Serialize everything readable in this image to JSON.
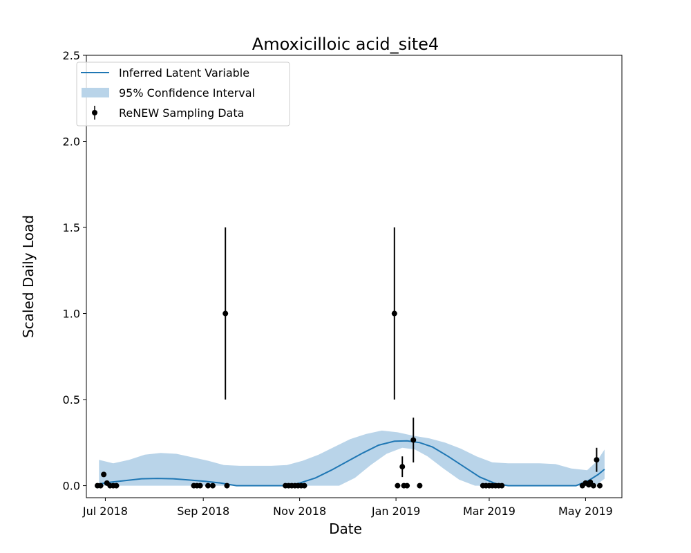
{
  "chart_data": {
    "type": "line",
    "title": "Amoxicilloic acid_site4",
    "xlabel": "Date",
    "ylabel": "Scaled Daily Load",
    "xlim": [
      "2018-06-19",
      "2019-05-24"
    ],
    "ylim": [
      -0.07,
      2.5
    ],
    "x_ticks": [
      {
        "date": "2018-07-01",
        "label": "Jul 2018"
      },
      {
        "date": "2018-09-01",
        "label": "Sep 2018"
      },
      {
        "date": "2018-11-01",
        "label": "Nov 2018"
      },
      {
        "date": "2019-01-01",
        "label": "Jan 2019"
      },
      {
        "date": "2019-03-01",
        "label": "Mar 2019"
      },
      {
        "date": "2019-05-01",
        "label": "May 2019"
      }
    ],
    "y_ticks": [
      {
        "value": 0.0,
        "label": "0.0"
      },
      {
        "value": 0.5,
        "label": "0.5"
      },
      {
        "value": 1.0,
        "label": "1.0"
      },
      {
        "value": 1.5,
        "label": "1.5"
      },
      {
        "value": 2.0,
        "label": "2.0"
      },
      {
        "value": 2.5,
        "label": "2.5"
      }
    ],
    "legend": {
      "placement": "top-left",
      "entries": [
        "Inferred Latent Variable",
        "95% Confidence Interval",
        "ReNEW Sampling Data"
      ]
    },
    "colors": {
      "line": "#1f77b4",
      "band": "#b9d4e9",
      "points": "#000000"
    },
    "latent": {
      "name": "Inferred Latent Variable",
      "points": [
        [
          "2018-06-27",
          0.01
        ],
        [
          "2018-07-04",
          0.02
        ],
        [
          "2018-07-14",
          0.03
        ],
        [
          "2018-07-24",
          0.04
        ],
        [
          "2018-08-03",
          0.042
        ],
        [
          "2018-08-13",
          0.04
        ],
        [
          "2018-08-23",
          0.033
        ],
        [
          "2018-09-02",
          0.025
        ],
        [
          "2018-09-12",
          0.015
        ],
        [
          "2018-09-22",
          0.0
        ],
        [
          "2018-10-12",
          0.0
        ],
        [
          "2018-10-25",
          0.0
        ],
        [
          "2018-11-01",
          0.015
        ],
        [
          "2018-11-11",
          0.045
        ],
        [
          "2018-11-21",
          0.09
        ],
        [
          "2018-12-01",
          0.14
        ],
        [
          "2018-12-11",
          0.19
        ],
        [
          "2018-12-21",
          0.235
        ],
        [
          "2018-12-31",
          0.258
        ],
        [
          "2019-01-08",
          0.26
        ],
        [
          "2019-01-16",
          0.25
        ],
        [
          "2019-01-24",
          0.225
        ],
        [
          "2019-02-03",
          0.17
        ],
        [
          "2019-02-13",
          0.11
        ],
        [
          "2019-02-23",
          0.05
        ],
        [
          "2019-03-05",
          0.012
        ],
        [
          "2019-03-13",
          0.0
        ],
        [
          "2019-04-25",
          0.0
        ],
        [
          "2019-05-03",
          0.03
        ],
        [
          "2019-05-09",
          0.065
        ],
        [
          "2019-05-13",
          0.095
        ]
      ]
    },
    "confidence_interval": {
      "name": "95% Confidence Interval",
      "upper": [
        [
          "2018-06-27",
          0.15
        ],
        [
          "2018-07-06",
          0.13
        ],
        [
          "2018-07-16",
          0.15
        ],
        [
          "2018-07-26",
          0.18
        ],
        [
          "2018-08-05",
          0.19
        ],
        [
          "2018-08-15",
          0.185
        ],
        [
          "2018-08-25",
          0.165
        ],
        [
          "2018-09-04",
          0.145
        ],
        [
          "2018-09-14",
          0.12
        ],
        [
          "2018-09-24",
          0.115
        ],
        [
          "2018-10-14",
          0.115
        ],
        [
          "2018-10-24",
          0.12
        ],
        [
          "2018-11-03",
          0.145
        ],
        [
          "2018-11-13",
          0.18
        ],
        [
          "2018-11-23",
          0.225
        ],
        [
          "2018-12-03",
          0.27
        ],
        [
          "2018-12-13",
          0.3
        ],
        [
          "2018-12-23",
          0.32
        ],
        [
          "2019-01-02",
          0.31
        ],
        [
          "2019-01-12",
          0.29
        ],
        [
          "2019-01-22",
          0.275
        ],
        [
          "2019-02-01",
          0.25
        ],
        [
          "2019-02-11",
          0.215
        ],
        [
          "2019-02-21",
          0.17
        ],
        [
          "2019-03-03",
          0.135
        ],
        [
          "2019-03-13",
          0.13
        ],
        [
          "2019-03-23",
          0.13
        ],
        [
          "2019-04-02",
          0.13
        ],
        [
          "2019-04-12",
          0.125
        ],
        [
          "2019-04-22",
          0.1
        ],
        [
          "2019-05-02",
          0.09
        ],
        [
          "2019-05-08",
          0.14
        ],
        [
          "2019-05-13",
          0.21
        ]
      ],
      "lower": [
        [
          "2018-06-27",
          0.0
        ],
        [
          "2018-11-26",
          0.0
        ],
        [
          "2018-12-06",
          0.045
        ],
        [
          "2018-12-16",
          0.12
        ],
        [
          "2018-12-26",
          0.185
        ],
        [
          "2019-01-05",
          0.22
        ],
        [
          "2019-01-13",
          0.21
        ],
        [
          "2019-01-21",
          0.17
        ],
        [
          "2019-01-31",
          0.1
        ],
        [
          "2019-02-10",
          0.035
        ],
        [
          "2019-02-20",
          0.0
        ],
        [
          "2019-05-07",
          0.0
        ],
        [
          "2019-05-10",
          0.02
        ],
        [
          "2019-05-13",
          0.04
        ]
      ]
    },
    "samples": [
      {
        "x": "2018-06-26",
        "y": 0.0
      },
      {
        "x": "2018-06-28",
        "y": 0.0
      },
      {
        "x": "2018-06-30",
        "y": 0.065
      },
      {
        "x": "2018-07-02",
        "y": 0.015
      },
      {
        "x": "2018-07-04",
        "y": 0.0
      },
      {
        "x": "2018-07-06",
        "y": 0.0
      },
      {
        "x": "2018-07-08",
        "y": 0.0
      },
      {
        "x": "2018-08-26",
        "y": 0.0
      },
      {
        "x": "2018-08-28",
        "y": 0.0
      },
      {
        "x": "2018-08-30",
        "y": 0.0
      },
      {
        "x": "2018-09-04",
        "y": 0.0
      },
      {
        "x": "2018-09-07",
        "y": 0.0
      },
      {
        "x": "2018-09-15",
        "y": 1.0,
        "err": 0.5
      },
      {
        "x": "2018-09-16",
        "y": 0.0
      },
      {
        "x": "2018-10-23",
        "y": 0.0
      },
      {
        "x": "2018-10-25",
        "y": 0.0
      },
      {
        "x": "2018-10-27",
        "y": 0.0
      },
      {
        "x": "2018-10-29",
        "y": 0.0
      },
      {
        "x": "2018-10-31",
        "y": 0.0
      },
      {
        "x": "2018-11-02",
        "y": 0.0
      },
      {
        "x": "2018-11-04",
        "y": 0.0
      },
      {
        "x": "2018-12-31",
        "y": 1.0,
        "err": 0.5
      },
      {
        "x": "2019-01-02",
        "y": 0.0
      },
      {
        "x": "2019-01-05",
        "y": 0.11,
        "err": 0.06
      },
      {
        "x": "2019-01-06",
        "y": 0.0
      },
      {
        "x": "2019-01-08",
        "y": 0.0
      },
      {
        "x": "2019-01-12",
        "y": 0.265,
        "err": 0.13
      },
      {
        "x": "2019-01-16",
        "y": 0.0
      },
      {
        "x": "2019-02-25",
        "y": 0.0
      },
      {
        "x": "2019-02-27",
        "y": 0.0
      },
      {
        "x": "2019-03-01",
        "y": 0.0
      },
      {
        "x": "2019-03-03",
        "y": 0.0
      },
      {
        "x": "2019-03-05",
        "y": 0.0
      },
      {
        "x": "2019-03-07",
        "y": 0.0
      },
      {
        "x": "2019-03-09",
        "y": 0.0
      },
      {
        "x": "2019-04-29",
        "y": 0.0
      },
      {
        "x": "2019-05-01",
        "y": 0.015
      },
      {
        "x": "2019-05-03",
        "y": 0.005
      },
      {
        "x": "2019-05-04",
        "y": 0.02
      },
      {
        "x": "2019-05-06",
        "y": 0.0
      },
      {
        "x": "2019-05-08",
        "y": 0.15,
        "err": 0.07
      },
      {
        "x": "2019-05-10",
        "y": 0.0
      }
    ]
  }
}
